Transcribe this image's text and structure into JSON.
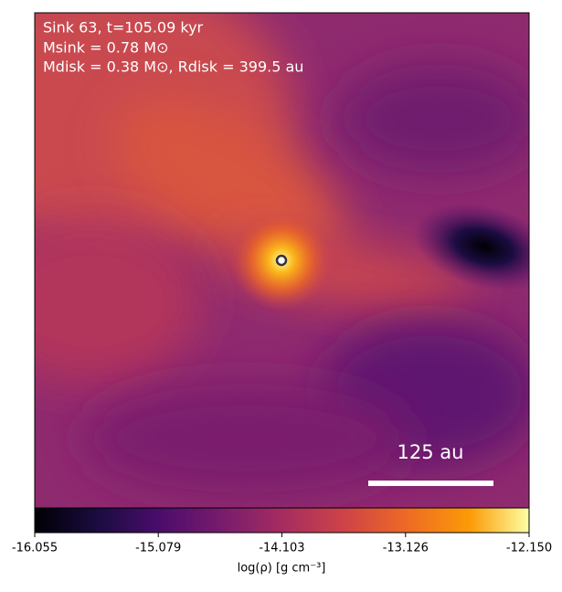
{
  "chart_data": {
    "type": "heatmap",
    "annotations": [
      "Sink 63, t=105.09 kyr",
      "Msink = 0.78 M⊙",
      "Mdisk = 0.38 M⊙, Rdisk = 399.5 au"
    ],
    "scale_bar_label": "125 au",
    "colorbar": {
      "label": "log(ρ) [g cm⁻³]",
      "clim": [
        -16.055,
        {
          "value": -12.15,
          "label": "-12.150"
        }
      ],
      "ticks": [
        -16.055,
        -15.079,
        -14.103,
        -13.126,
        {
          "value": -12.15,
          "label": "-12.150"
        }
      ]
    }
  }
}
